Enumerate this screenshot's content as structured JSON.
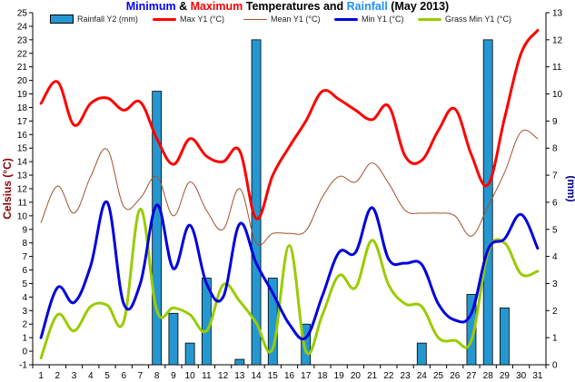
{
  "title": {
    "parts": [
      {
        "text": "Minimum",
        "color": "#0000ff"
      },
      {
        "text": " & ",
        "color": "#000000"
      },
      {
        "text": "Maximum",
        "color": "#ff0000"
      },
      {
        "text": " Temperatures and ",
        "color": "#000000"
      },
      {
        "text": "Rainfall",
        "color": "#1e90ff"
      },
      {
        "text": " (May 2013)",
        "color": "#000000"
      }
    ]
  },
  "legend": {
    "rain": "Rainfall Y2 (mm)",
    "max": "Max Y1 (°C)",
    "mean": "Mean Y1 (°C)",
    "min": "Min Y1 (°C)",
    "grass": "Grass Min Y1 (°C)"
  },
  "chart_data": {
    "type": "bar+line",
    "title": "Minimum & Maximum Temperatures and Rainfall (May 2013)",
    "ylabel": "Celsius (°C)",
    "y2label": "(mm)",
    "ylim": [
      -1,
      25
    ],
    "y2lim": [
      0,
      13
    ],
    "grid": false,
    "legend_position": "top",
    "x": [
      1,
      2,
      3,
      4,
      5,
      6,
      7,
      8,
      9,
      10,
      11,
      12,
      13,
      14,
      15,
      16,
      17,
      18,
      19,
      20,
      21,
      22,
      23,
      24,
      25,
      26,
      27,
      28,
      29,
      30,
      31
    ],
    "series": [
      {
        "name": "Rainfall Y2 (mm)",
        "type": "bar",
        "axis": "y2",
        "color": "#2597d0",
        "values": [
          0,
          0,
          0,
          0,
          0,
          0,
          0,
          10.1,
          1.9,
          0.8,
          3.2,
          0,
          0.2,
          12.0,
          3.2,
          0,
          1.5,
          0,
          0,
          0,
          0,
          0,
          0,
          0.8,
          0,
          0,
          2.6,
          12.0,
          2.1,
          0,
          0
        ]
      },
      {
        "name": "Max Y1 (°C)",
        "type": "line",
        "axis": "y1",
        "color": "#ff0000",
        "values": [
          18.3,
          19.9,
          16.7,
          18.3,
          18.7,
          17.8,
          18.4,
          15.7,
          13.8,
          15.7,
          14.4,
          14.0,
          14.8,
          9.8,
          13.0,
          15.1,
          17.0,
          19.2,
          18.6,
          17.8,
          17.1,
          18.1,
          14.4,
          14.1,
          16.3,
          17.9,
          14.5,
          12.3,
          17.2,
          22.0,
          23.7
        ]
      },
      {
        "name": "Mean Y1 (°C)",
        "type": "line",
        "axis": "y1",
        "color": "#a0522d",
        "values": [
          9.5,
          12.2,
          10.2,
          12.9,
          14.9,
          10.7,
          11.3,
          12.9,
          10.0,
          12.5,
          10.4,
          9.0,
          12.0,
          8.0,
          8.7,
          8.7,
          8.9,
          11.4,
          12.9,
          12.5,
          13.9,
          12.4,
          10.4,
          10.2,
          10.2,
          10.0,
          8.5,
          10.7,
          13.2,
          16.2,
          15.7
        ]
      },
      {
        "name": "Min Y1 (°C)",
        "type": "line",
        "axis": "y1",
        "color": "#0000dd",
        "values": [
          1.0,
          4.7,
          3.6,
          6.3,
          11.0,
          3.5,
          5.0,
          10.8,
          6.1,
          9.3,
          5.0,
          4.0,
          9.4,
          6.5,
          4.3,
          2.0,
          1.0,
          4.1,
          7.3,
          7.3,
          10.6,
          6.8,
          6.5,
          6.4,
          3.5,
          2.3,
          2.8,
          7.5,
          8.3,
          10.1,
          7.6
        ]
      },
      {
        "name": "Grass Min Y1 (°C)",
        "type": "line",
        "axis": "y1",
        "color": "#99cc00",
        "values": [
          -0.5,
          2.7,
          1.5,
          3.3,
          3.4,
          2.2,
          10.5,
          3.0,
          3.2,
          2.7,
          1.5,
          4.9,
          3.7,
          2.1,
          0.2,
          7.8,
          0.0,
          2.7,
          5.6,
          4.7,
          8.2,
          4.9,
          3.5,
          3.3,
          1.0,
          0.8,
          0.8,
          7.3,
          8.0,
          5.7,
          5.9
        ]
      }
    ]
  }
}
